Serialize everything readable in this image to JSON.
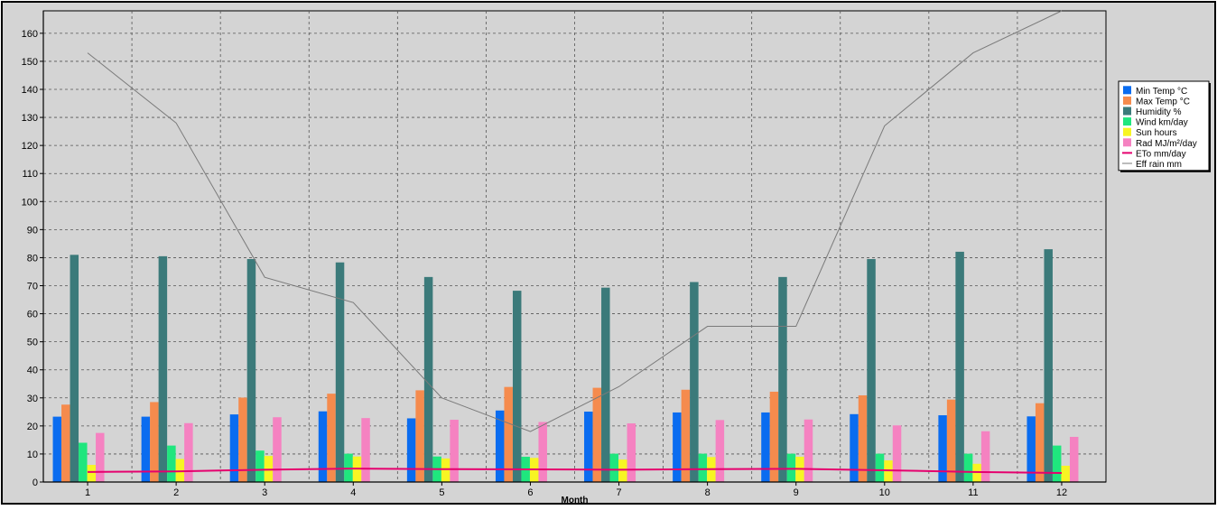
{
  "chart_data": {
    "type": "bar",
    "xlabel": "Month",
    "ylabel": "",
    "ylim": [
      0,
      168
    ],
    "y_ticks": [
      0,
      10,
      20,
      30,
      40,
      50,
      60,
      70,
      80,
      90,
      100,
      110,
      120,
      130,
      140,
      150,
      160
    ],
    "grid": true,
    "legend_position": "right",
    "categories": [
      "1",
      "2",
      "3",
      "4",
      "5",
      "6",
      "7",
      "8",
      "9",
      "10",
      "11",
      "12"
    ],
    "series": [
      {
        "name": "Min Temp  °C",
        "kind": "bar",
        "color": "#0a6cf0",
        "values": [
          23.3,
          23.3,
          24.1,
          25.2,
          22.7,
          25.5,
          25.1,
          24.8,
          24.8,
          24.2,
          23.8,
          23.4
        ]
      },
      {
        "name": "Max Temp  °C",
        "kind": "bar",
        "color": "#f58b4d",
        "values": [
          27.6,
          28.5,
          30.1,
          31.5,
          32.7,
          33.9,
          33.6,
          32.9,
          32.2,
          30.9,
          29.4,
          28.1
        ]
      },
      {
        "name": "Humidity  %",
        "kind": "bar",
        "color": "#3b7a7a",
        "values": [
          81,
          80.5,
          79.5,
          78.3,
          73.1,
          68.2,
          69.3,
          71.3,
          73.1,
          79.5,
          82.1,
          83
        ]
      },
      {
        "name": "Wind  km/day",
        "kind": "bar",
        "color": "#1fe67e",
        "values": [
          14,
          13,
          11.2,
          10.1,
          9.1,
          9,
          10.1,
          10.1,
          10.1,
          10.1,
          10.1,
          13
        ]
      },
      {
        "name": "Sun  hours",
        "kind": "bar",
        "color": "#f7f523",
        "values": [
          6.1,
          8.2,
          9.3,
          9.1,
          8.4,
          8.6,
          8,
          8.9,
          9,
          7.7,
          6.5,
          5.8
        ]
      },
      {
        "name": "Rad  MJ/m²/day",
        "kind": "bar",
        "color": "#f582c1",
        "values": [
          17.5,
          21,
          23.1,
          22.8,
          22.2,
          21.4,
          20.9,
          22.1,
          22.3,
          20.2,
          18.1,
          16.1
        ]
      },
      {
        "name": "ETo  mm/day",
        "kind": "line",
        "color": "#e5006e",
        "values": [
          3.6,
          3.8,
          4.4,
          4.8,
          4.6,
          4.5,
          4.4,
          4.6,
          4.7,
          4.2,
          3.6,
          3.2
        ]
      },
      {
        "name": "Eff rain  mm",
        "kind": "line",
        "color": "#7a7a7a",
        "values": [
          153,
          128,
          73,
          64,
          30,
          18,
          34,
          55.5,
          55.5,
          127,
          153,
          168
        ]
      }
    ]
  }
}
